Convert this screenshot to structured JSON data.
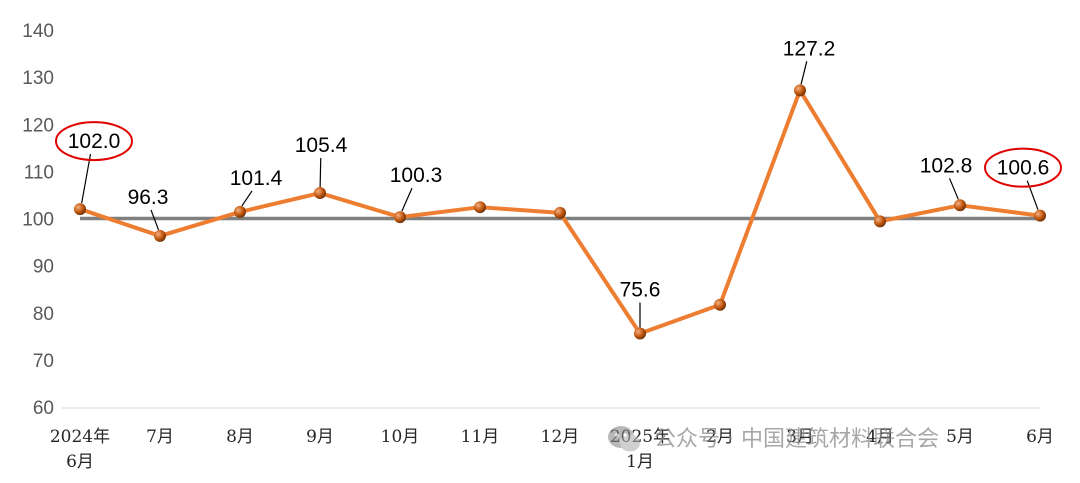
{
  "chart_data": {
    "type": "line",
    "categories": [
      [
        "2024年",
        "6月"
      ],
      [
        "7月"
      ],
      [
        "8月"
      ],
      [
        "9月"
      ],
      [
        "10月"
      ],
      [
        "11月"
      ],
      [
        "12月"
      ],
      [
        "2025年",
        "1月"
      ],
      [
        "2月"
      ],
      [
        "3月"
      ],
      [
        "4月"
      ],
      [
        "5月"
      ],
      [
        "6月"
      ]
    ],
    "values": [
      102.0,
      96.3,
      101.4,
      105.4,
      100.3,
      102.4,
      101.2,
      75.6,
      81.7,
      127.2,
      99.4,
      102.8,
      100.6
    ],
    "data_labels": [
      "102.0",
      "96.3",
      "101.4",
      "105.4",
      "100.3",
      "",
      "",
      "75.6",
      "",
      "127.2",
      "",
      "102.8",
      "100.6"
    ],
    "circled_labels": [
      0,
      12
    ],
    "reference_line": 100,
    "ylim": [
      60,
      140
    ],
    "yticks": [
      "60",
      "70",
      "80",
      "90",
      "100",
      "110",
      "120",
      "130",
      "140"
    ],
    "grid": false,
    "title": "",
    "xlabel": "",
    "ylabel": "",
    "colors": {
      "line": "#ED7D31",
      "marker": "#C55A11",
      "reference": "#7F7F7F",
      "circle": "#E00000"
    }
  },
  "watermark": {
    "text": "公众号 · 中国建筑材料联合会",
    "icon": "wechat-icon"
  }
}
